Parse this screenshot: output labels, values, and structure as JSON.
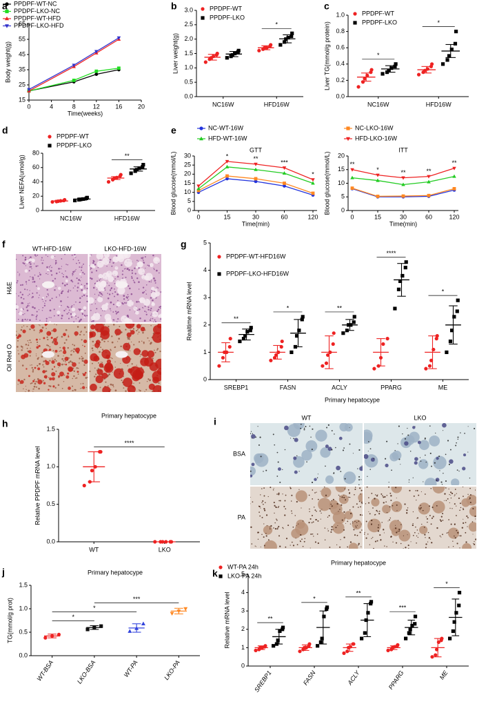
{
  "chart_data": [
    {
      "panel": "a",
      "type": "line",
      "x": [
        0,
        8,
        12,
        16
      ],
      "xlim": [
        0,
        20
      ],
      "xticks": [
        0,
        4,
        8,
        12,
        16,
        20
      ],
      "ylim": [
        15,
        65
      ],
      "yticks": [
        15,
        25,
        35,
        45,
        55,
        65
      ],
      "xlabel": "Time(weeks)",
      "ylabel": "Body weight(g)",
      "series": [
        {
          "name": "PPDPF-WT-NC",
          "color": "#000000",
          "marker": "circle",
          "values": [
            21,
            27,
            32,
            35
          ]
        },
        {
          "name": "PPDPF-LKO-NC",
          "color": "#22dd22",
          "marker": "square",
          "values": [
            21,
            28,
            34,
            36
          ]
        },
        {
          "name": "PPDPF-WT-HFD",
          "color": "#ee2222",
          "marker": "triangle",
          "values": [
            21,
            37,
            46,
            55
          ]
        },
        {
          "name": "PPDPF-LKO-HFD",
          "color": "#3333cc",
          "marker": "triangle-down",
          "values": [
            22,
            38,
            47,
            56
          ]
        }
      ]
    },
    {
      "panel": "b",
      "type": "dotplot",
      "categories": [
        "NC16W",
        "HFD16W"
      ],
      "ylabel": "Liver weight(g)",
      "ylim": [
        0,
        3
      ],
      "yticks": [
        {
          "value": 0,
          "label": "0.0"
        },
        0.5,
        {
          "value": 1,
          "label": "1.0"
        },
        1.5,
        {
          "value": 2,
          "label": "2.0"
        },
        2.5,
        {
          "value": 3,
          "label": "3.0"
        }
      ],
      "series": [
        {
          "name": "PPDPF-WT",
          "color": "#ee2222",
          "marker": "circle",
          "values": [
            1.37,
            1.7
          ],
          "errors": [
            0.1,
            0.07
          ],
          "points": [
            [
              1.2,
              1.3,
              1.35,
              1.4,
              1.45,
              1.5
            ],
            [
              1.6,
              1.65,
              1.7,
              1.7,
              1.75,
              1.8
            ]
          ]
        },
        {
          "name": "PPDPF-LKO",
          "color": "#000000",
          "marker": "square",
          "values": [
            1.48,
            2.01
          ],
          "errors": [
            0.09,
            0.14
          ],
          "points": [
            [
              1.35,
              1.4,
              1.45,
              1.5,
              1.55,
              1.6
            ],
            [
              1.8,
              1.9,
              2.0,
              2.05,
              2.1,
              2.2
            ]
          ]
        }
      ],
      "significance": [
        null,
        "*"
      ]
    },
    {
      "panel": "c",
      "type": "dotplot",
      "categories": [
        "NC16W",
        "HFD16W"
      ],
      "ylabel": "Liver TG(mmol/g protein)",
      "ylim": [
        0,
        1
      ],
      "yticks": [
        {
          "value": 0,
          "label": "0.0"
        },
        0.2,
        0.4,
        0.6,
        0.8,
        {
          "value": 1,
          "label": "1.0"
        }
      ],
      "series": [
        {
          "name": "PPDPF-WT",
          "color": "#ee2222",
          "marker": "circle",
          "values": [
            0.24,
            0.33
          ],
          "errors": [
            0.05,
            0.04
          ],
          "points": [
            [
              0.12,
              0.18,
              0.22,
              0.26,
              0.3,
              0.33
            ],
            [
              0.27,
              0.3,
              0.32,
              0.34,
              0.37,
              0.4
            ]
          ]
        },
        {
          "name": "PPDPF-LKO",
          "color": "#000000",
          "marker": "square",
          "values": [
            0.34,
            0.56
          ],
          "errors": [
            0.04,
            0.08
          ],
          "points": [
            [
              0.28,
              0.3,
              0.32,
              0.35,
              0.37,
              0.4
            ],
            [
              0.4,
              0.45,
              0.5,
              0.58,
              0.65,
              0.8
            ]
          ]
        }
      ],
      "significance": [
        "*",
        "*"
      ]
    },
    {
      "panel": "d",
      "type": "dotplot",
      "categories": [
        "NC16W",
        "HFD16W"
      ],
      "ylabel": "Liver NEFA(umol/g)",
      "ylim": [
        0,
        80
      ],
      "yticks": [
        0,
        20,
        40,
        60,
        80
      ],
      "series": [
        {
          "name": "PPDPF-WT",
          "color": "#ee2222",
          "marker": "circle",
          "values": [
            13.3,
            45.3
          ],
          "errors": [
            1,
            2
          ],
          "points": [
            [
              12,
              12.5,
              13,
              13.5,
              14,
              15
            ],
            [
              40,
              43,
              45,
              46,
              48,
              50
            ]
          ]
        },
        {
          "name": "PPDPF-LKO",
          "color": "#000000",
          "marker": "square",
          "values": [
            16,
            58
          ],
          "errors": [
            1.5,
            3
          ],
          "points": [
            [
              14,
              15,
              15.5,
              16,
              17,
              18
            ],
            [
              52,
              55,
              57,
              59,
              61,
              64
            ]
          ]
        }
      ],
      "significance": [
        null,
        "**"
      ]
    },
    {
      "panel": "e",
      "type": "multiline",
      "categories": [
        "0",
        "15",
        "30",
        "60",
        "120"
      ],
      "xlabel": "Time(min)",
      "ylabel": "Blood glucose(mmol/L)",
      "series": [
        {
          "name": "NC-WT-16W",
          "color": "#2233dd",
          "marker": "circle"
        },
        {
          "name": "NC-LKO-16W",
          "color": "#ff8822",
          "marker": "square"
        },
        {
          "name": "HFD-WT-16W",
          "color": "#22cc22",
          "marker": "triangle"
        },
        {
          "name": "HFD-LKO-16W",
          "color": "#ee2222",
          "marker": "triangle-down"
        }
      ],
      "subplots": [
        {
          "title": "GTT",
          "ylim": [
            0,
            30
          ],
          "yticks": [
            0,
            5,
            10,
            15,
            20,
            25,
            30
          ],
          "values": [
            [
              10,
              17.5,
              16,
              13.5,
              8.5
            ],
            [
              11,
              19,
              17.5,
              15,
              9.5
            ],
            [
              12,
              24,
              22.5,
              20.5,
              15
            ],
            [
              13.5,
              27,
              25.5,
              23.5,
              17
            ]
          ],
          "significance": [
            null,
            "*",
            "**",
            "***",
            "*"
          ]
        },
        {
          "title": "ITT",
          "ylim": [
            0,
            20
          ],
          "yticks": [
            0,
            5,
            10,
            15,
            20
          ],
          "values": [
            [
              8,
              5,
              5,
              5.2,
              7.5
            ],
            [
              8.2,
              5.2,
              5.3,
              5.5,
              8
            ],
            [
              12,
              11,
              9.5,
              10.5,
              12.5
            ],
            [
              15,
              13,
              12,
              12.5,
              15.5
            ]
          ],
          "significance": [
            "**",
            "*",
            "**",
            "**",
            "**"
          ]
        }
      ]
    },
    {
      "panel": "f",
      "type": "image",
      "columns": [
        "WT-HFD-16W",
        "LKO-HFD-16W"
      ],
      "rows": [
        "H&E",
        "Oil Red O"
      ]
    },
    {
      "panel": "g",
      "type": "dotplot",
      "categories": [
        "SREBP1",
        "FASN",
        "ACLY",
        "PPARG",
        "ME"
      ],
      "ylabel": "Realtime mRNA level",
      "ylim": [
        0,
        5
      ],
      "yticks": [
        0,
        1,
        2,
        3,
        4,
        5
      ],
      "series": [
        {
          "name": "PPDPF-WT-HFD16W",
          "color": "#ee2222",
          "marker": "circle",
          "values": [
            1,
            1,
            1,
            1,
            1
          ],
          "errors": [
            0.35,
            0.25,
            0.6,
            0.5,
            0.6
          ],
          "points": [
            [
              0.5,
              0.8,
              1.0,
              1.0,
              1.2,
              1.5
            ],
            [
              0.7,
              0.8,
              0.9,
              1.0,
              1.2,
              1.4
            ],
            [
              0.5,
              0.6,
              0.9,
              1.0,
              1.3,
              1.7
            ],
            [
              0.4,
              0.5,
              0.8,
              1.3,
              1.5
            ],
            [
              0.4,
              0.5,
              0.7,
              1.1,
              1.5,
              1.6
            ]
          ]
        },
        {
          "name": "PPDPF-LKO-HFD16W",
          "color": "#000000",
          "marker": "square",
          "values": [
            1.65,
            1.7,
            2.0,
            3.65,
            2.0
          ],
          "errors": [
            0.2,
            0.5,
            0.2,
            0.6,
            0.7
          ],
          "points": [
            [
              1.4,
              1.5,
              1.6,
              1.75,
              1.8,
              1.9
            ],
            [
              1.0,
              1.2,
              1.6,
              1.8,
              2.2,
              2.3
            ],
            [
              1.7,
              1.8,
              2.0,
              2.0,
              2.1,
              2.3
            ],
            [
              2.6,
              3.3,
              3.6,
              3.8,
              4.1,
              4.3
            ],
            [
              1.0,
              1.4,
              1.8,
              2.3,
              2.5,
              2.9
            ]
          ]
        }
      ],
      "significance": [
        "**",
        "*",
        "**",
        "****",
        "*"
      ]
    },
    {
      "panel": "h",
      "type": "dotplot",
      "title": "Primary hepatocype",
      "categories": [
        "WT",
        "LKO"
      ],
      "ylabel": "Relative PPDPF mRNA level",
      "ylim": [
        0,
        1.5
      ],
      "yticks": [
        {
          "value": 0,
          "label": "0.0"
        },
        0.5,
        {
          "value": 1,
          "label": "1.0"
        },
        1.5
      ],
      "values": [
        1.0,
        0.0
      ],
      "errors": [
        0.2,
        0.0
      ],
      "colors": [
        "#ee2222",
        "#ee2222"
      ],
      "markers": [
        "circle",
        "circle"
      ],
      "points": [
        [
          0.75,
          0.8,
          0.95,
          1.0,
          1.2,
          1.2
        ],
        [
          0,
          0,
          0,
          0,
          0,
          0
        ]
      ],
      "comparisons": [
        {
          "pair": [
            "WT",
            "LKO"
          ],
          "label": "****"
        }
      ]
    },
    {
      "panel": "i",
      "type": "image",
      "title": "Primary hepatocype",
      "columns": [
        "WT",
        "LKO"
      ],
      "rows": [
        "BSA",
        "PA"
      ]
    },
    {
      "panel": "j",
      "type": "dotplot",
      "title": "Primary hepatocype",
      "categories": [
        "WT-BSA",
        "LKO-BSA",
        "WT-PA",
        "LKO-PA"
      ],
      "ylabel": "TG(mmol/g prot)",
      "ylim": [
        0,
        1.5
      ],
      "yticks": [
        {
          "value": 0,
          "label": "0.0"
        },
        0.5,
        {
          "value": 1,
          "label": "1.0"
        },
        1.5
      ],
      "values": [
        0.42,
        0.6,
        0.59,
        0.95
      ],
      "errors": [
        0.04,
        0.04,
        0.09,
        0.06
      ],
      "colors": [
        "#ee2222",
        "#111111",
        "#3344dd",
        "#ff8822"
      ],
      "markers": [
        "circle",
        "square",
        "triangle",
        "triangle-down"
      ],
      "points": [
        [
          0.38,
          0.42,
          0.45
        ],
        [
          0.56,
          0.6,
          0.63
        ],
        [
          0.52,
          0.58,
          0.68
        ],
        [
          0.9,
          0.95,
          1.0
        ]
      ],
      "rotated_labels": true,
      "italic_labels": true,
      "comparisons": [
        {
          "pair": [
            "WT-BSA",
            "LKO-BSA"
          ],
          "label": "*"
        },
        {
          "pair": [
            "WT-BSA",
            "WT-PA"
          ],
          "label": "*"
        },
        {
          "pair": [
            "LKO-BSA",
            "LKO-PA"
          ],
          "label": "***"
        }
      ]
    },
    {
      "panel": "k",
      "type": "dotplot",
      "title": "Primary hepatocype",
      "categories": [
        "SREBP1",
        "FASN",
        "ACLY",
        "PPARG",
        "ME"
      ],
      "ylabel": "Relative mRNA level",
      "ylim": [
        0,
        5
      ],
      "yticks": [
        0,
        1,
        2,
        3,
        4,
        5
      ],
      "rotated_labels": true,
      "italic_labels": true,
      "series": [
        {
          "name": "WT-PA 24h",
          "color": "#ee2222",
          "marker": "circle",
          "values": [
            1,
            1,
            1,
            1,
            1
          ],
          "errors": [
            0.1,
            0.15,
            0.2,
            0.1,
            0.5
          ],
          "points": [
            [
              0.85,
              0.9,
              1.0,
              1.0,
              1.05,
              1.1
            ],
            [
              0.8,
              0.9,
              1.0,
              1.0,
              1.1,
              1.2
            ],
            [
              0.7,
              0.8,
              1.0,
              1.05,
              1.2,
              1.2
            ],
            [
              0.85,
              0.9,
              1.0,
              1.05,
              1.1,
              1.15
            ],
            [
              0.5,
              0.6,
              0.9,
              1.3,
              1.4,
              1.5
            ]
          ]
        },
        {
          "name": "LKO-PA 24h",
          "color": "#000000",
          "marker": "square",
          "values": [
            1.6,
            2.1,
            2.5,
            2.1,
            2.65
          ],
          "errors": [
            0.4,
            0.9,
            0.9,
            0.4,
            1.0
          ],
          "points": [
            [
              1.1,
              1.2,
              1.4,
              1.9,
              2.0,
              2.1
            ],
            [
              1.1,
              1.3,
              1.5,
              2.7,
              3.1,
              3.2
            ],
            [
              1.5,
              1.8,
              2.5,
              2.9,
              3.4,
              3.5
            ],
            [
              1.5,
              1.8,
              2.0,
              2.2,
              2.3,
              2.7
            ],
            [
              1.5,
              1.9,
              2.4,
              2.9,
              3.3,
              4.0
            ]
          ]
        }
      ],
      "significance": [
        "**",
        "*",
        "**",
        "***",
        "*"
      ]
    }
  ]
}
